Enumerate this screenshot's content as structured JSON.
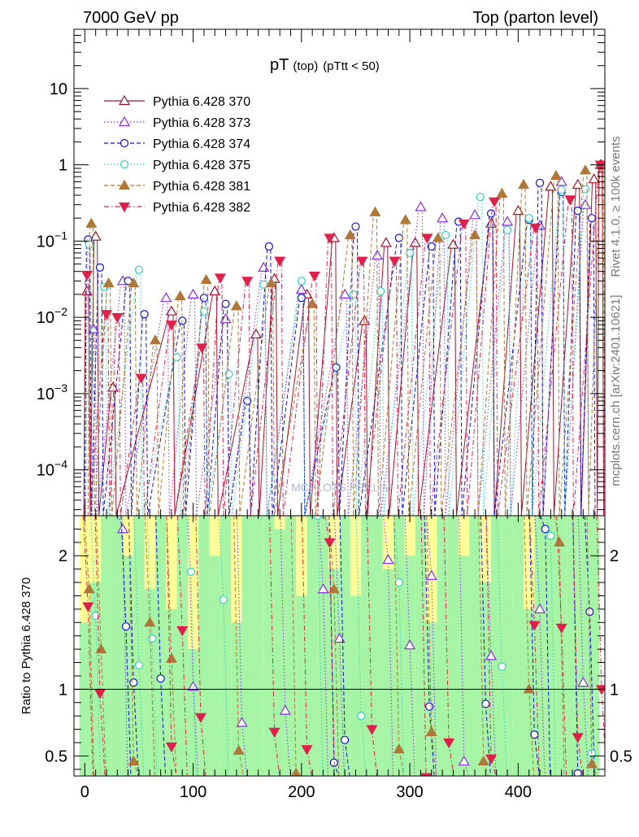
{
  "header": {
    "left_label": "7000 GeV pp",
    "right_label": "Top (parton level)"
  },
  "side_labels": {
    "rivet": "Rivet 4.1.0, ≥ 100k events",
    "mcplots": "mcplots.cern.ch [arXiv:2401.10621]"
  },
  "watermark": "MCPLOTS PRELIM",
  "colors": {
    "band_inner": "#a6f5a6",
    "band_outer": "#ffff99",
    "s370": "#a0142a",
    "s373": "#8a2be2",
    "s374": "#1010d0",
    "s375": "#30d0c0",
    "s381": "#b07838",
    "s382": "#e0204a"
  },
  "chart_data": [
    {
      "type": "line",
      "title": "pT",
      "title_sub": "(top)",
      "title_cut": "(pTtt < 50)",
      "xlabel": "",
      "ylabel": "",
      "xlim": [
        -10,
        480
      ],
      "ylim": [
        2.5e-05,
        60
      ],
      "yscale": "log",
      "yticks": [
        0.0001,
        0.001,
        0.01,
        0.1,
        1,
        10
      ],
      "ytick_labels": [
        "10^-4",
        "10^-3",
        "10^-2",
        "10^-1",
        "1",
        "10"
      ],
      "legend": [
        {
          "name": "Pythia 6.428 370",
          "marker": "triangle-open",
          "dash": "solid",
          "color_key": "s370"
        },
        {
          "name": "Pythia 6.428 373",
          "marker": "triangle-open",
          "dash": "dotted",
          "color_key": "s373"
        },
        {
          "name": "Pythia 6.428 374",
          "marker": "circle-open",
          "dash": "dashed",
          "color_key": "s374"
        },
        {
          "name": "Pythia 6.428 375",
          "marker": "circle-open",
          "dash": "dotted",
          "color_key": "s375"
        },
        {
          "name": "Pythia 6.428 381",
          "marker": "triangle-filled",
          "dash": "dashed",
          "color_key": "s381"
        },
        {
          "name": "Pythia 6.428 382",
          "marker": "triangle-down-filled",
          "dash": "dashdot",
          "color_key": "s382"
        }
      ],
      "series": [
        {
          "name": "Pythia 6.428 370",
          "points": [
            [
              2,
              0.022
            ],
            [
              10,
              0.115
            ],
            [
              26,
              0.0012
            ],
            [
              80,
              0.012
            ],
            [
              120,
              0.022
            ],
            [
              158,
              0.006
            ],
            [
              175,
              0.032
            ],
            [
              205,
              0.02
            ],
            [
              230,
              0.11
            ],
            [
              258,
              0.009
            ],
            [
              278,
              0.095
            ],
            [
              305,
              0.095
            ],
            [
              340,
              0.09
            ],
            [
              375,
              0.17
            ],
            [
              400,
              0.25
            ],
            [
              430,
              0.52
            ],
            [
              455,
              0.55
            ],
            [
              470,
              0.65
            ],
            [
              476,
              1.0
            ]
          ]
        },
        {
          "name": "Pythia 6.428 373",
          "points": [
            [
              8,
              0.007
            ],
            [
              35,
              0.03
            ],
            [
              75,
              0.018
            ],
            [
              100,
              0.02
            ],
            [
              130,
              0.0095
            ],
            [
              165,
              0.045
            ],
            [
              200,
              0.023
            ],
            [
              240,
              0.02
            ],
            [
              270,
              0.065
            ],
            [
              310,
              0.28
            ],
            [
              330,
              0.2
            ],
            [
              360,
              0.22
            ],
            [
              390,
              0.18
            ],
            [
              420,
              0.16
            ],
            [
              440,
              0.6
            ],
            [
              462,
              0.3
            ]
          ]
        },
        {
          "name": "Pythia 6.428 374",
          "points": [
            [
              3,
              0.105
            ],
            [
              14,
              0.045
            ],
            [
              40,
              0.03
            ],
            [
              55,
              0.011
            ],
            [
              90,
              0.009
            ],
            [
              110,
              0.018
            ],
            [
              130,
              0.015
            ],
            [
              150,
              0.0008
            ],
            [
              170,
              0.085
            ],
            [
              200,
              0.018
            ],
            [
              232,
              0.0022
            ],
            [
              250,
              0.155
            ],
            [
              290,
              0.11
            ],
            [
              320,
              0.085
            ],
            [
              345,
              0.18
            ],
            [
              375,
              0.23
            ],
            [
              410,
              0.19
            ],
            [
              420,
              0.58
            ],
            [
              440,
              0.44
            ],
            [
              455,
              0.25
            ],
            [
              468,
              0.2
            ]
          ]
        },
        {
          "name": "Pythia 6.428 375",
          "points": [
            [
              4,
              0.09
            ],
            [
              18,
              0.025
            ],
            [
              50,
              0.042
            ],
            [
              85,
              0.003
            ],
            [
              110,
              0.012
            ],
            [
              133,
              0.0018
            ],
            [
              165,
              0.027
            ],
            [
              200,
              0.03
            ],
            [
              248,
              0.02
            ],
            [
              273,
              0.022
            ],
            [
              300,
              0.07
            ],
            [
              333,
              0.12
            ],
            [
              365,
              0.38
            ],
            [
              390,
              0.14
            ],
            [
              410,
              0.2
            ],
            [
              440,
              0.47
            ],
            [
              462,
              0.48
            ]
          ]
        },
        {
          "name": "Pythia 6.428 381",
          "points": [
            [
              6,
              0.17
            ],
            [
              22,
              0.028
            ],
            [
              45,
              0.028
            ],
            [
              65,
              0.005
            ],
            [
              88,
              0.019
            ],
            [
              112,
              0.031
            ],
            [
              140,
              0.014
            ],
            [
              172,
              0.028
            ],
            [
              210,
              0.015
            ],
            [
              245,
              0.12
            ],
            [
              268,
              0.24
            ],
            [
              296,
              0.19
            ],
            [
              326,
              0.11
            ],
            [
              360,
              0.12
            ],
            [
              385,
              0.42
            ],
            [
              405,
              0.55
            ],
            [
              435,
              0.72
            ],
            [
              462,
              0.85
            ],
            [
              477,
              1.0
            ]
          ]
        },
        {
          "name": "Pythia 6.428 382",
          "points": [
            [
              2,
              0.036
            ],
            [
              20,
              0.011
            ],
            [
              30,
              0.01
            ],
            [
              52,
              0.0016
            ],
            [
              80,
              0.008
            ],
            [
              108,
              0.004
            ],
            [
              125,
              0.033
            ],
            [
              150,
              0.03
            ],
            [
              180,
              0.055
            ],
            [
              212,
              0.035
            ],
            [
              226,
              0.11
            ],
            [
              256,
              0.055
            ],
            [
              286,
              0.055
            ],
            [
              316,
              0.11
            ],
            [
              350,
              0.17
            ],
            [
              378,
              0.33
            ],
            [
              416,
              0.15
            ],
            [
              448,
              0.35
            ],
            [
              476,
              1.0
            ]
          ]
        }
      ]
    },
    {
      "type": "line",
      "title": "",
      "xlabel": "",
      "ylabel": "Ratio to Pythia 6.428 370",
      "xlim": [
        -10,
        480
      ],
      "ylim": [
        0.35,
        2.3
      ],
      "xticks": [
        0,
        100,
        200,
        300,
        400
      ],
      "xtick_labels": [
        "0",
        "100",
        "200",
        "300",
        "400"
      ],
      "yticks": [
        0.5,
        1,
        2
      ],
      "ytick_labels": [
        "0.5",
        "1",
        "2"
      ],
      "reference_line": 1,
      "band_edges": [
        -5,
        5,
        15,
        25,
        35,
        45,
        55,
        65,
        75,
        85,
        95,
        105,
        115,
        125,
        135,
        145,
        155,
        165,
        175,
        185,
        195,
        205,
        215,
        225,
        235,
        245,
        255,
        265,
        275,
        285,
        295,
        305,
        315,
        325,
        335,
        345,
        355,
        365,
        375,
        385,
        395,
        405,
        415,
        425,
        435,
        445,
        455,
        465,
        475
      ],
      "band_inner_up": [
        1.5,
        1.8,
        2.3,
        2.3,
        2.0,
        2.3,
        1.75,
        2.3,
        1.6,
        2.3,
        1.3,
        2.3,
        2.0,
        2.3,
        1.5,
        2.3,
        2.3,
        2.3,
        2.2,
        2.3,
        1.7,
        2.3,
        2.3,
        1.9,
        2.3,
        1.7,
        2.3,
        2.3,
        1.9,
        2.3,
        2.0,
        2.3,
        1.5,
        2.3,
        2.3,
        2.0,
        2.3,
        1.8,
        2.3,
        2.3,
        2.3,
        1.6,
        2.3,
        2.3,
        2.3,
        2.3,
        2.3,
        2.3
      ],
      "band_outer_up": [
        2.3,
        2.3,
        2.3,
        2.3,
        2.3,
        2.3,
        2.3,
        2.3,
        2.3,
        2.3,
        2.3,
        2.3,
        2.3,
        2.3,
        2.3,
        2.3,
        2.3,
        2.3,
        2.3,
        2.3,
        2.3,
        2.3,
        2.3,
        2.3,
        2.3,
        2.3,
        2.3,
        2.3,
        2.3,
        2.3,
        2.3,
        2.3,
        2.3,
        2.3,
        2.3,
        2.3,
        2.3,
        2.3,
        2.3,
        2.3,
        2.3,
        2.3,
        2.3,
        2.3,
        2.3,
        2.3,
        2.3,
        2.3
      ],
      "series": [
        {
          "name": "Pythia 6.428 373",
          "points": [
            [
              35,
              2.2
            ],
            [
              100,
              1.02
            ],
            [
              145,
              0.75
            ],
            [
              185,
              0.84
            ],
            [
              220,
              1.75
            ],
            [
              235,
              1.38
            ],
            [
              280,
              1.97
            ],
            [
              300,
              1.33
            ],
            [
              320,
              1.85
            ],
            [
              350,
              0.46
            ],
            [
              375,
              1.25
            ],
            [
              420,
              1.6
            ],
            [
              460,
              1.05
            ]
          ]
        },
        {
          "name": "Pythia 6.428 374",
          "points": [
            [
              38,
              1.47
            ],
            [
              45,
              1.05
            ],
            [
              70,
              1.08
            ],
            [
              230,
              0.45
            ],
            [
              240,
              0.62
            ],
            [
              318,
              0.87
            ],
            [
              370,
              0.89
            ],
            [
              415,
              0.66
            ],
            [
              425,
              2.2
            ],
            [
              455,
              0.37
            ],
            [
              466,
              1.58
            ]
          ]
        },
        {
          "name": "Pythia 6.428 375",
          "points": [
            [
              10,
              1.55
            ],
            [
              50,
              1.18
            ],
            [
              62,
              1.38
            ],
            [
              98,
              1.88
            ],
            [
              128,
              1.67
            ],
            [
              215,
              2.3
            ],
            [
              255,
              0.8
            ],
            [
              290,
              1.8
            ],
            [
              385,
              1.17
            ],
            [
              430,
              2.15
            ],
            [
              468,
              0.52
            ]
          ]
        },
        {
          "name": "Pythia 6.428 381",
          "points": [
            [
              4,
              1.75
            ],
            [
              15,
              1.3
            ],
            [
              45,
              0.46
            ],
            [
              60,
              1.5
            ],
            [
              80,
              1.23
            ],
            [
              142,
              0.54
            ],
            [
              195,
              0.37
            ],
            [
              230,
              1.75
            ],
            [
              290,
              0.55
            ],
            [
              320,
              0.68
            ],
            [
              368,
              0.46
            ],
            [
              410,
              1.0
            ],
            [
              438,
              2.1
            ],
            [
              468,
              0.44
            ]
          ]
        },
        {
          "name": "Pythia 6.428 382",
          "points": [
            [
              3,
              1.62
            ],
            [
              14,
              0.97
            ],
            [
              80,
              0.57
            ],
            [
              90,
              1.44
            ],
            [
              107,
              0.79
            ],
            [
              175,
              0.68
            ],
            [
              205,
              0.55
            ],
            [
              226,
              2.1
            ],
            [
              265,
              0.7
            ],
            [
              315,
              0.34
            ],
            [
              336,
              0.6
            ],
            [
              375,
              0.48
            ],
            [
              415,
              1.48
            ],
            [
              440,
              1.46
            ],
            [
              455,
              0.64
            ],
            [
              477,
              1.0
            ]
          ]
        }
      ]
    }
  ]
}
